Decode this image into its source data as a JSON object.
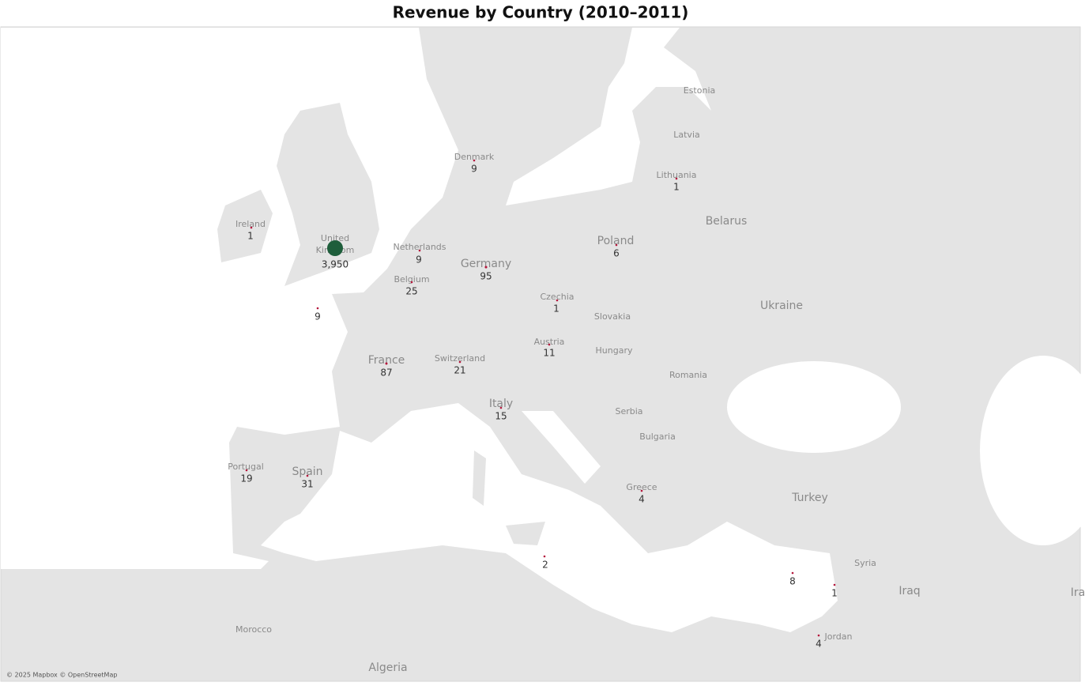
{
  "chart_data": {
    "type": "map",
    "title": "Revenue by Country (2010–2011)",
    "values": [
      1,
      3950,
      9,
      9,
      25,
      95,
      9,
      1,
      6,
      1,
      11,
      21,
      87,
      15,
      19,
      31,
      4,
      2,
      8,
      1,
      4
    ],
    "value_labels": [
      "1",
      "3,950",
      "9",
      "9",
      "25",
      "95",
      "9",
      "1",
      "6",
      "1",
      "11",
      "21",
      "87",
      "15",
      "19",
      "31",
      "4",
      "2",
      "8",
      "1",
      "4"
    ],
    "colors": [
      "#b5173c",
      "#1e5e3b",
      "#b5173c",
      "#b5173c",
      "#b5173c",
      "#b5173c",
      "#b5173c",
      "#b5173c",
      "#b5173c",
      "#b5173c",
      "#b5173c",
      "#b5173c",
      "#b5173c",
      "#b5173c",
      "#b5173c",
      "#b5173c",
      "#b5173c",
      "#b5173c",
      "#b5173c",
      "#b5173c",
      "#b5173c"
    ],
    "place_labels": [
      "Estonia",
      "Latvia",
      "Lithuania",
      "Denmark",
      "Ireland",
      "United",
      "Kingdom",
      "Netherlands",
      "Germany",
      "Belgium",
      "Poland",
      "Belarus",
      "Czechia",
      "Slovakia",
      "Ukraine",
      "Austria",
      "Hungary",
      "Switzerland",
      "France",
      "Romania",
      "Italy",
      "Serbia",
      "Bulgaria",
      "Portugal",
      "Spain",
      "Greece",
      "Turkey",
      "Syria",
      "Iraq",
      "Ira",
      "Morocco",
      "Algeria",
      "Jordan"
    ],
    "attribution": "© 2025 Mapbox © OpenStreetMap"
  }
}
